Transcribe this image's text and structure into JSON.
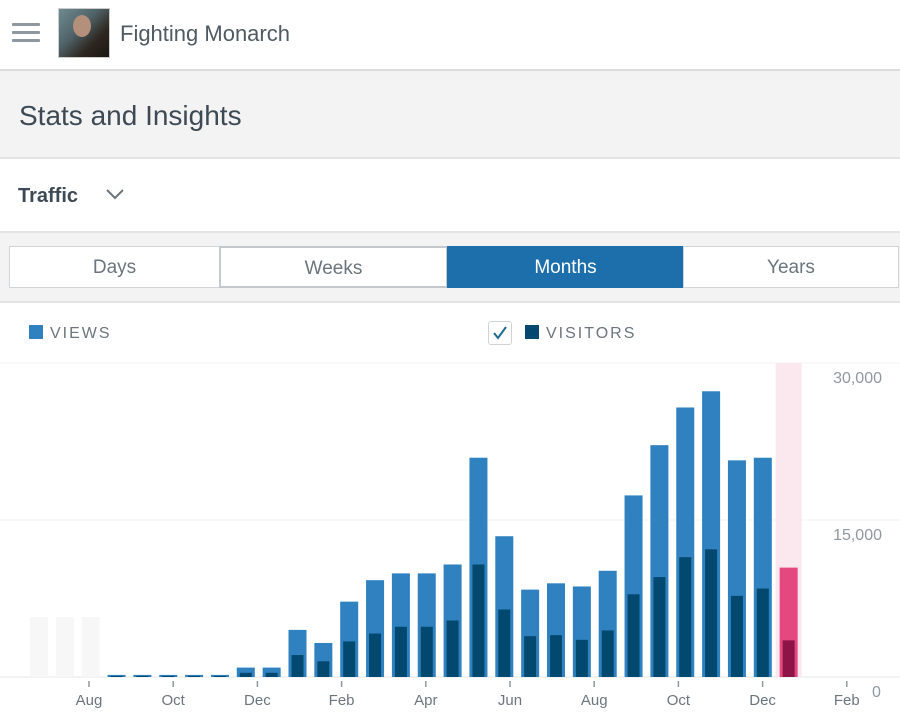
{
  "header": {
    "site_name": "Fighting Monarch",
    "menu_icon": "hamburger-icon",
    "avatar": "site-avatar"
  },
  "page_title": "Stats and Insights",
  "section": {
    "label": "Traffic",
    "icon": "chevron-down-icon"
  },
  "periods": [
    {
      "label": "Days",
      "active": false
    },
    {
      "label": "Weeks",
      "active": false
    },
    {
      "label": "Months",
      "active": true
    },
    {
      "label": "Years",
      "active": false
    }
  ],
  "legend": {
    "views": "VIEWS",
    "visitors": "VISITORS",
    "visitors_checked": true
  },
  "colors": {
    "views": "#2f82bf",
    "visitors": "#03486f",
    "selected_views": "#e5487e",
    "selected_visitors": "#8c1446",
    "selected_band": "#fbe7ee",
    "active_tab": "#1c6fab"
  },
  "chart_data": {
    "type": "bar",
    "series": [
      {
        "name": "VIEWS",
        "values": [
          0,
          0,
          0,
          200,
          200,
          200,
          200,
          200,
          900,
          900,
          4500,
          3250,
          7200,
          9250,
          9900,
          9900,
          10750,
          20950,
          13450,
          8350,
          8950,
          8650,
          10150,
          17350,
          22150,
          25750,
          27300,
          20700,
          20950,
          10450
        ]
      },
      {
        "name": "VISITORS",
        "values": [
          0,
          0,
          0,
          100,
          100,
          100,
          100,
          100,
          400,
          400,
          2100,
          1500,
          3400,
          4150,
          4800,
          4800,
          5400,
          10750,
          6450,
          3900,
          4000,
          3550,
          4450,
          7900,
          9550,
          11450,
          12200,
          7750,
          8450,
          3500
        ]
      }
    ],
    "placeholder_bars": [
      true,
      true,
      true,
      false,
      false,
      false,
      false,
      false,
      false,
      false,
      false,
      false,
      false,
      false,
      false,
      false,
      false,
      false,
      false,
      false,
      false,
      false,
      false,
      false,
      false,
      false,
      false,
      false,
      false,
      false
    ],
    "selected_index": 29,
    "x_tick_labels": [
      "Aug",
      "Oct",
      "Dec",
      "Feb",
      "Apr",
      "Jun",
      "Aug",
      "Oct",
      "Dec",
      "Feb"
    ],
    "y_tick_labels": [
      "0",
      "15,000",
      "30,000"
    ],
    "ylim": [
      0,
      30000
    ],
    "grid": true
  }
}
